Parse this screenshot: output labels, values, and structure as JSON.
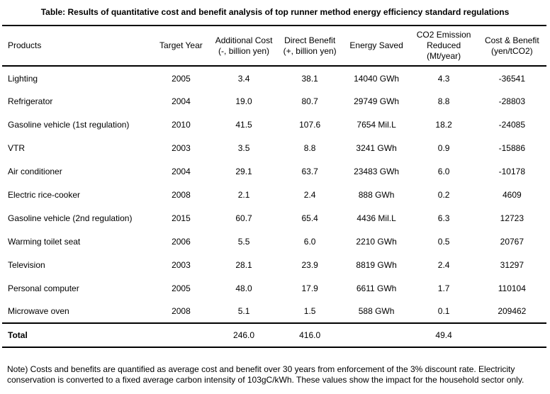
{
  "title": "Table: Results of quantitative cost and benefit analysis of top runner method energy efficiency standard regulations",
  "headers": {
    "products": "Products",
    "target_year": "Target Year",
    "additional_cost": [
      "Additional Cost",
      "(-, billion yen)"
    ],
    "direct_benefit": [
      "Direct Benefit",
      "(+, billion yen)"
    ],
    "energy_saved": "Energy Saved",
    "co2_reduced": [
      "CO2 Emission",
      "Reduced",
      "(Mt/year)"
    ],
    "cost_benefit": [
      "Cost & Benefit",
      "(yen/tCO2)"
    ]
  },
  "rows": [
    {
      "product": "Lighting",
      "year": "2005",
      "cost": "3.4",
      "benefit": "38.1",
      "energy": "14040 GWh",
      "co2": "4.3",
      "cb": "-36541"
    },
    {
      "product": "Refrigerator",
      "year": "2004",
      "cost": "19.0",
      "benefit": "80.7",
      "energy": "29749 GWh",
      "co2": "8.8",
      "cb": "-28803"
    },
    {
      "product": "Gasoline vehicle (1st regulation)",
      "year": "2010",
      "cost": "41.5",
      "benefit": "107.6",
      "energy": "7654 Mil.L",
      "co2": "18.2",
      "cb": "-24085"
    },
    {
      "product": "VTR",
      "year": "2003",
      "cost": "3.5",
      "benefit": "8.8",
      "energy": "3241 GWh",
      "co2": "0.9",
      "cb": "-15886"
    },
    {
      "product": "Air conditioner",
      "year": "2004",
      "cost": "29.1",
      "benefit": "63.7",
      "energy": "23483 GWh",
      "co2": "6.0",
      "cb": "-10178"
    },
    {
      "product": "Electric rice-cooker",
      "year": "2008",
      "cost": "2.1",
      "benefit": "2.4",
      "energy": "888 GWh",
      "co2": "0.2",
      "cb": "4609"
    },
    {
      "product": "Gasoline vehicle (2nd regulation)",
      "year": "2015",
      "cost": "60.7",
      "benefit": "65.4",
      "energy": "4436 Mil.L",
      "co2": "6.3",
      "cb": "12723"
    },
    {
      "product": "Warming toilet seat",
      "year": "2006",
      "cost": "5.5",
      "benefit": "6.0",
      "energy": "2210 GWh",
      "co2": "0.5",
      "cb": "20767"
    },
    {
      "product": "Television",
      "year": "2003",
      "cost": "28.1",
      "benefit": "23.9",
      "energy": "8819 GWh",
      "co2": "2.4",
      "cb": "31297"
    },
    {
      "product": "Personal computer",
      "year": "2005",
      "cost": "48.0",
      "benefit": "17.9",
      "energy": "6611 GWh",
      "co2": "1.7",
      "cb": "110104"
    },
    {
      "product": "Microwave oven",
      "year": "2008",
      "cost": "5.1",
      "benefit": "1.5",
      "energy": "588 GWh",
      "co2": "0.1",
      "cb": "209462"
    }
  ],
  "total": {
    "label": "Total",
    "cost": "246.0",
    "benefit": "416.0",
    "co2": "49.4"
  },
  "note": "Note) Costs and benefits are quantified as average cost and benefit over 30 years from enforcement of the 3% discount rate. Electricity conservation is converted to a fixed average carbon intensity of 103gC/kWh. These values show the impact for the household sector only."
}
